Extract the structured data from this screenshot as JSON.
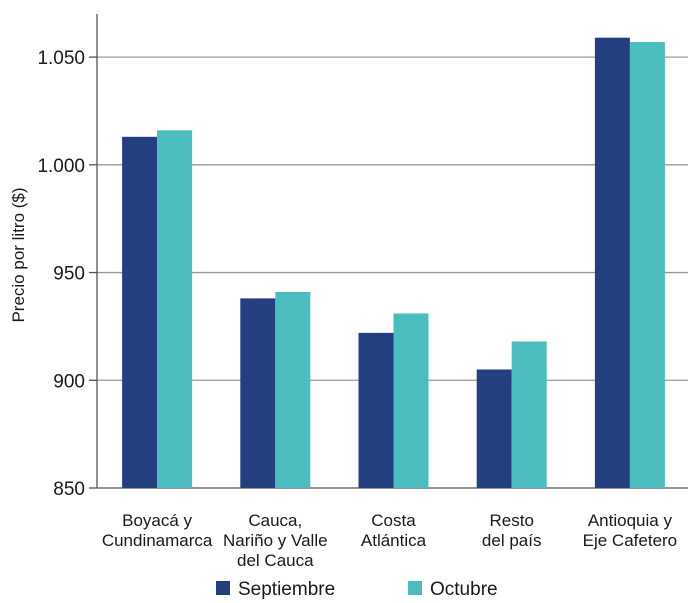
{
  "chart_data": {
    "type": "bar",
    "categories": [
      [
        "Boyacá y",
        "Cundinamarca"
      ],
      [
        "Cauca,",
        "Nariño y Valle",
        "del Cauca"
      ],
      [
        "Costa",
        "Atlántica"
      ],
      [
        "Resto",
        "del país"
      ],
      [
        "Antioquia y",
        "Eje Cafetero"
      ]
    ],
    "series": [
      {
        "name": "Septiembre",
        "color": "#243f7f",
        "values": [
          1013,
          938,
          922,
          905,
          1059
        ]
      },
      {
        "name": "Octubre",
        "color": "#4bbdbf",
        "values": [
          1016,
          941,
          931,
          918,
          1057
        ]
      }
    ],
    "ylabel": "Precio por litro ($)",
    "ylim": [
      850,
      1070
    ],
    "yticks": [
      850,
      900,
      950,
      1000,
      1050
    ],
    "ytick_labels": [
      "850",
      "900",
      "950",
      "1.000",
      "1.050"
    ],
    "grid": true,
    "legend": "bottom"
  }
}
